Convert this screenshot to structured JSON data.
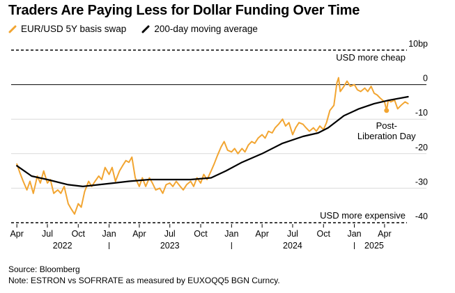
{
  "title": "Traders Are Paying Less for Dollar Funding Over Time",
  "legend": [
    {
      "label": "EUR/USD 5Y basis swap",
      "color": "#f2a531"
    },
    {
      "label": "200-day moving average",
      "color": "#000000"
    }
  ],
  "footer": {
    "source": "Source: Bloomberg",
    "note": "Note: ESTRON vs SOFRRATE as measured by EUXOQQ5 BGN Curncy."
  },
  "chart_data": {
    "type": "line",
    "title": "Traders Are Paying Less for Dollar Funding Over Time",
    "ylabel": "",
    "yunit": "bp",
    "ylim": [
      -40,
      10
    ],
    "yticks": [
      10,
      0,
      -10,
      -20,
      -30,
      -40
    ],
    "ytick_labels": [
      "10bp",
      "0",
      "-10",
      "-20",
      "-30",
      "-40"
    ],
    "xlim": [
      "2022-03-15",
      "2025-06-15"
    ],
    "xticks": [
      {
        "date": "2022-04-01",
        "label": "Apr"
      },
      {
        "date": "2022-07-01",
        "label": "Jul"
      },
      {
        "date": "2022-10-01",
        "label": "Oct"
      },
      {
        "date": "2023-01-01",
        "label": "Jan"
      },
      {
        "date": "2023-04-01",
        "label": "Apr"
      },
      {
        "date": "2023-07-01",
        "label": "Jul"
      },
      {
        "date": "2023-10-01",
        "label": "Oct"
      },
      {
        "date": "2024-01-01",
        "label": "Jan"
      },
      {
        "date": "2024-04-01",
        "label": "Apr"
      },
      {
        "date": "2024-07-01",
        "label": "Jul"
      },
      {
        "date": "2024-10-01",
        "label": "Oct"
      },
      {
        "date": "2025-01-01",
        "label": "Jan"
      },
      {
        "date": "2025-04-01",
        "label": "Apr"
      }
    ],
    "year_labels": [
      {
        "date": "2022-08-15",
        "label": "2022"
      },
      {
        "date": "2023-07-01",
        "label": "2023"
      },
      {
        "date": "2024-07-01",
        "label": "2024"
      },
      {
        "date": "2025-03-01",
        "label": "2025"
      }
    ],
    "year_separators": [
      "2023-01-01",
      "2024-01-01",
      "2025-01-01"
    ],
    "grid": "horizontal",
    "legend_position": "top-left",
    "reference_lines": [
      {
        "y": 10,
        "style": "dashed",
        "label": "USD more cheap"
      },
      {
        "y": 0,
        "style": "solid",
        "label": ""
      },
      {
        "y": -40,
        "style": "dashed",
        "label": "USD more expensive"
      }
    ],
    "series": [
      {
        "name": "EUR/USD 5Y basis swap",
        "color": "#f2a531",
        "points": [
          [
            "2022-04-01",
            -23
          ],
          [
            "2022-04-10",
            -25.5
          ],
          [
            "2022-04-20",
            -28
          ],
          [
            "2022-05-01",
            -30.5
          ],
          [
            "2022-05-10",
            -28
          ],
          [
            "2022-05-20",
            -31.5
          ],
          [
            "2022-06-01",
            -26.5
          ],
          [
            "2022-06-10",
            -28.5
          ],
          [
            "2022-06-20",
            -25
          ],
          [
            "2022-07-01",
            -28.5
          ],
          [
            "2022-07-10",
            -27.5
          ],
          [
            "2022-07-20",
            -31.5
          ],
          [
            "2022-08-01",
            -30.5
          ],
          [
            "2022-08-10",
            -31.5
          ],
          [
            "2022-08-20",
            -29.5
          ],
          [
            "2022-09-01",
            -34.5
          ],
          [
            "2022-09-10",
            -36
          ],
          [
            "2022-09-20",
            -37.5
          ],
          [
            "2022-10-01",
            -34.5
          ],
          [
            "2022-10-10",
            -35.5
          ],
          [
            "2022-10-20",
            -31
          ],
          [
            "2022-11-01",
            -28
          ],
          [
            "2022-11-10",
            -29.5
          ],
          [
            "2022-11-20",
            -28
          ],
          [
            "2022-12-01",
            -26.5
          ],
          [
            "2022-12-10",
            -27.5
          ],
          [
            "2022-12-20",
            -24
          ],
          [
            "2023-01-01",
            -26
          ],
          [
            "2023-01-10",
            -24
          ],
          [
            "2023-01-20",
            -28
          ],
          [
            "2023-02-01",
            -25
          ],
          [
            "2023-02-10",
            -23.5
          ],
          [
            "2023-02-20",
            -22
          ],
          [
            "2023-03-01",
            -22.5
          ],
          [
            "2023-03-10",
            -21
          ],
          [
            "2023-03-20",
            -27
          ],
          [
            "2023-04-01",
            -29.5
          ],
          [
            "2023-04-10",
            -27
          ],
          [
            "2023-04-20",
            -29.5
          ],
          [
            "2023-05-01",
            -27
          ],
          [
            "2023-05-10",
            -28.5
          ],
          [
            "2023-05-20",
            -30.5
          ],
          [
            "2023-06-01",
            -30
          ],
          [
            "2023-06-10",
            -31.5
          ],
          [
            "2023-06-20",
            -29
          ],
          [
            "2023-07-01",
            -28.5
          ],
          [
            "2023-07-10",
            -29.5
          ],
          [
            "2023-07-20",
            -28
          ],
          [
            "2023-08-01",
            -29.5
          ],
          [
            "2023-08-10",
            -30.5
          ],
          [
            "2023-08-20",
            -29
          ],
          [
            "2023-09-01",
            -28
          ],
          [
            "2023-09-10",
            -29.5
          ],
          [
            "2023-09-20",
            -27
          ],
          [
            "2023-10-01",
            -28.5
          ],
          [
            "2023-10-10",
            -26
          ],
          [
            "2023-10-20",
            -27.5
          ],
          [
            "2023-11-01",
            -25
          ],
          [
            "2023-11-10",
            -23
          ],
          [
            "2023-11-20",
            -20.5
          ],
          [
            "2023-12-01",
            -18
          ],
          [
            "2023-12-10",
            -16.5
          ],
          [
            "2023-12-20",
            -19
          ],
          [
            "2024-01-01",
            -19.5
          ],
          [
            "2024-01-10",
            -18.5
          ],
          [
            "2024-01-20",
            -20
          ],
          [
            "2024-02-01",
            -18.5
          ],
          [
            "2024-02-10",
            -19.5
          ],
          [
            "2024-02-20",
            -17.5
          ],
          [
            "2024-03-01",
            -16.5
          ],
          [
            "2024-03-10",
            -17
          ],
          [
            "2024-03-20",
            -15.5
          ],
          [
            "2024-04-01",
            -14.5
          ],
          [
            "2024-04-10",
            -15.5
          ],
          [
            "2024-04-20",
            -13.5
          ],
          [
            "2024-05-01",
            -14
          ],
          [
            "2024-05-10",
            -12.5
          ],
          [
            "2024-05-20",
            -11.5
          ],
          [
            "2024-06-01",
            -10
          ],
          [
            "2024-06-10",
            -12
          ],
          [
            "2024-06-20",
            -11
          ],
          [
            "2024-07-01",
            -14.5
          ],
          [
            "2024-07-10",
            -12.5
          ],
          [
            "2024-07-20",
            -11
          ],
          [
            "2024-08-01",
            -11.5
          ],
          [
            "2024-08-10",
            -12.5
          ],
          [
            "2024-08-20",
            -13.5
          ],
          [
            "2024-09-01",
            -12.5
          ],
          [
            "2024-09-10",
            -13.5
          ],
          [
            "2024-09-20",
            -12
          ],
          [
            "2024-10-01",
            -13
          ],
          [
            "2024-10-10",
            -11
          ],
          [
            "2024-10-20",
            -7.5
          ],
          [
            "2024-11-01",
            -6
          ],
          [
            "2024-11-10",
            0.5
          ],
          [
            "2024-11-15",
            2
          ],
          [
            "2024-11-20",
            -2
          ],
          [
            "2024-12-01",
            -0.5
          ],
          [
            "2024-12-10",
            1
          ],
          [
            "2024-12-20",
            -0.5
          ],
          [
            "2025-01-01",
            0
          ],
          [
            "2025-01-10",
            -1.5
          ],
          [
            "2025-01-20",
            -2
          ],
          [
            "2025-02-01",
            -1
          ],
          [
            "2025-02-10",
            -2
          ],
          [
            "2025-02-20",
            -0.5
          ],
          [
            "2025-03-01",
            -2.5
          ],
          [
            "2025-03-10",
            -3
          ],
          [
            "2025-03-20",
            -4
          ],
          [
            "2025-04-01",
            -5
          ],
          [
            "2025-04-07",
            -7.5
          ],
          [
            "2025-04-12",
            -4.5
          ],
          [
            "2025-04-20",
            -5
          ],
          [
            "2025-05-01",
            -4.5
          ],
          [
            "2025-05-10",
            -7
          ],
          [
            "2025-05-20",
            -6
          ],
          [
            "2025-06-01",
            -5
          ],
          [
            "2025-06-10",
            -5.5
          ]
        ]
      },
      {
        "name": "200-day moving average",
        "color": "#000000",
        "points": [
          [
            "2022-04-01",
            -23.5
          ],
          [
            "2022-05-15",
            -26.5
          ],
          [
            "2022-07-01",
            -27.5
          ],
          [
            "2022-09-01",
            -29
          ],
          [
            "2022-10-15",
            -29.5
          ],
          [
            "2022-12-01",
            -29
          ],
          [
            "2023-01-15",
            -28.5
          ],
          [
            "2023-03-01",
            -28
          ],
          [
            "2023-05-01",
            -27.5
          ],
          [
            "2023-07-01",
            -27.5
          ],
          [
            "2023-09-01",
            -27.5
          ],
          [
            "2023-11-01",
            -27
          ],
          [
            "2023-12-15",
            -25
          ],
          [
            "2024-02-01",
            -22.5
          ],
          [
            "2024-04-01",
            -20
          ],
          [
            "2024-06-01",
            -17
          ],
          [
            "2024-08-01",
            -15
          ],
          [
            "2024-09-15",
            -14
          ],
          [
            "2024-10-15",
            -12.5
          ],
          [
            "2024-12-01",
            -9
          ],
          [
            "2025-01-15",
            -7
          ],
          [
            "2025-03-01",
            -5.5
          ],
          [
            "2025-04-15",
            -4.5
          ],
          [
            "2025-06-10",
            -3.5
          ]
        ]
      }
    ],
    "annotations": [
      {
        "date": "2025-04-07",
        "y": -7.5,
        "label_lines": [
          "Post-",
          "Liberation Day"
        ]
      }
    ]
  }
}
